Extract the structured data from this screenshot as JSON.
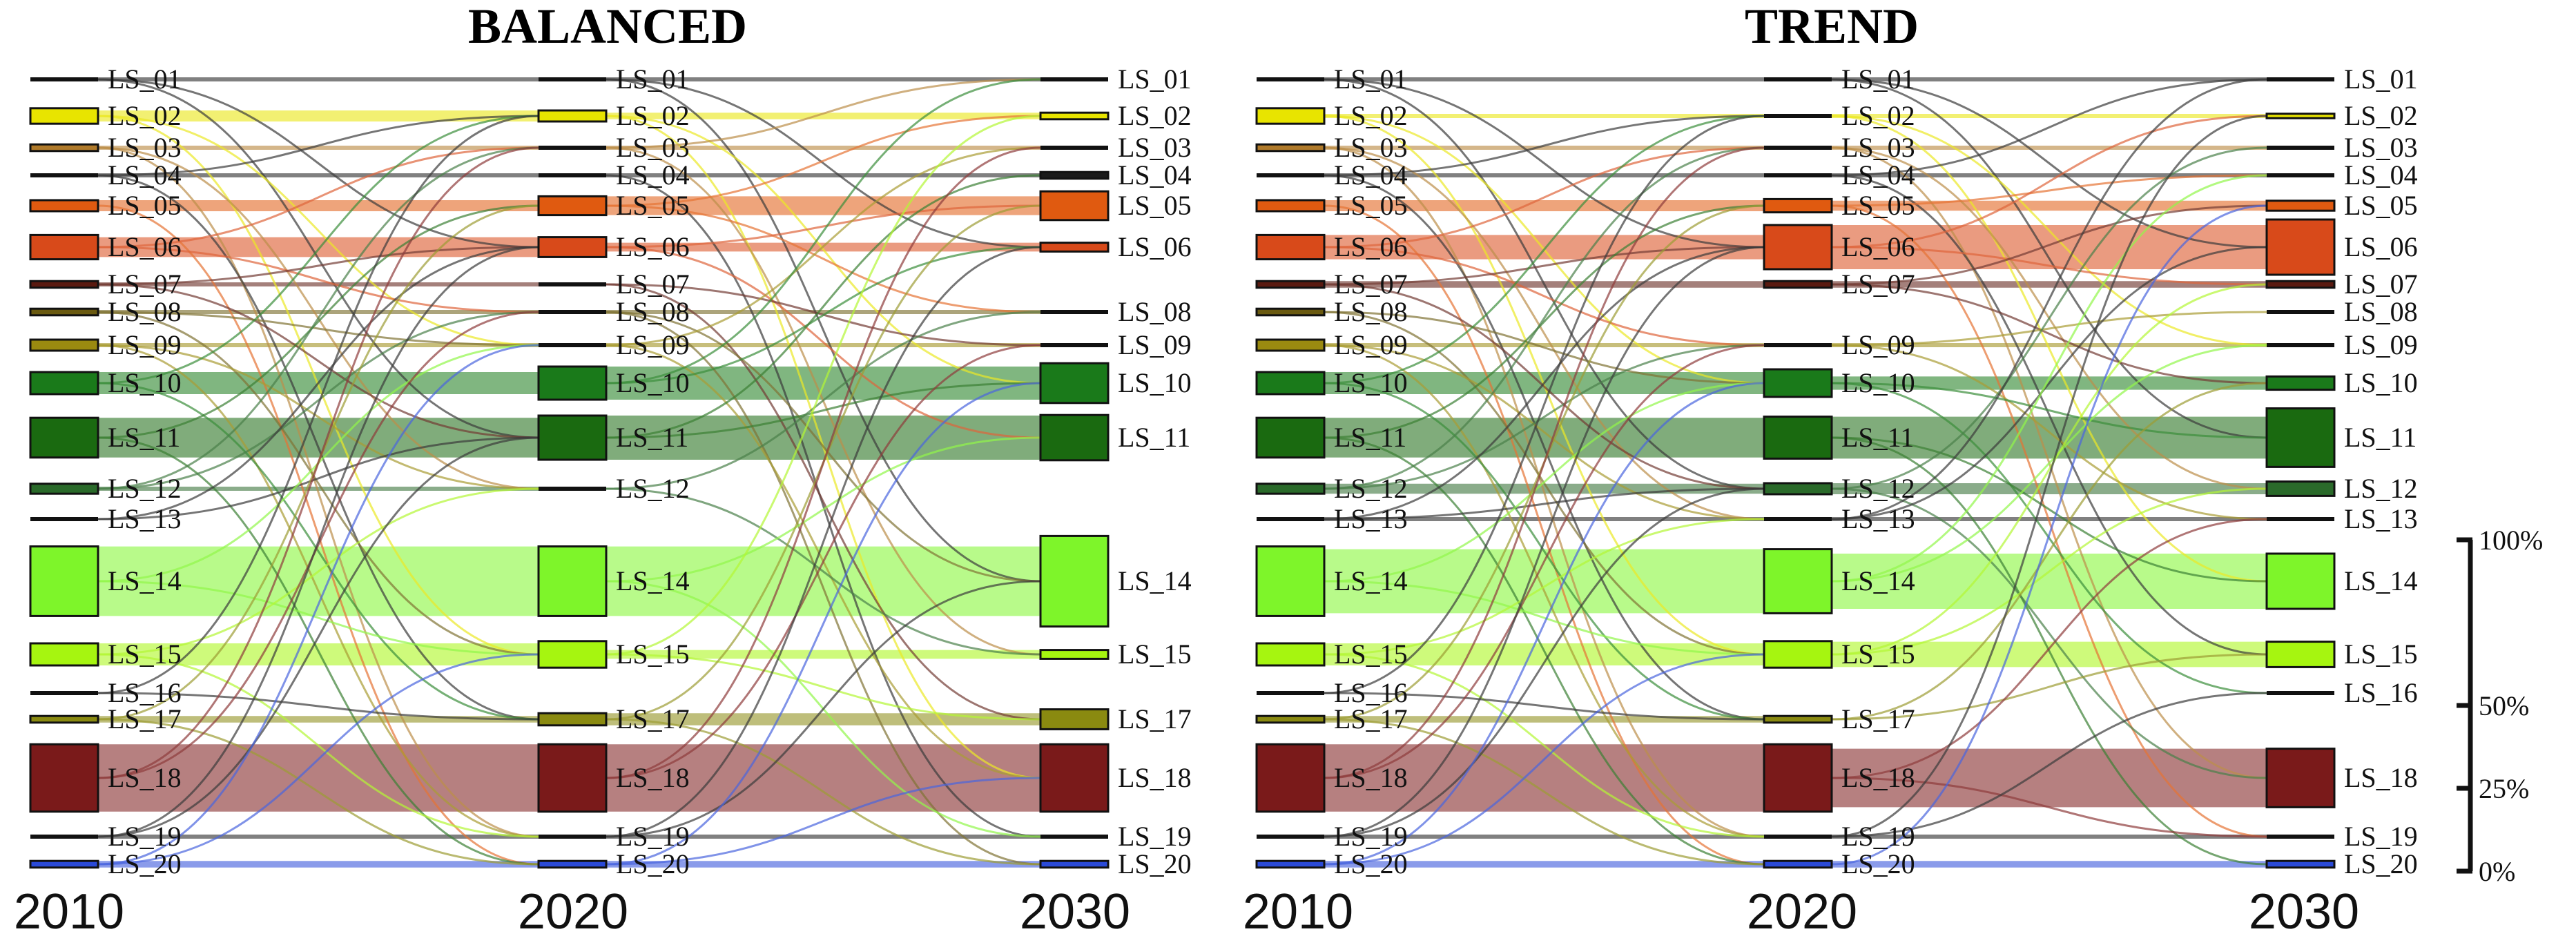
{
  "chart_data": [
    {
      "type": "sankey",
      "title": "BALANCED",
      "stages": [
        "2010",
        "2020",
        "2030"
      ],
      "series_colors": {
        "LS_01": "#1a1a1a",
        "LS_02": "#e8e400",
        "LS_03": "#b07a2a",
        "LS_04": "#1a1a1a",
        "LS_05": "#e05a10",
        "LS_06": "#d84a1a",
        "LS_07": "#5a1a10",
        "LS_08": "#6a5a10",
        "LS_09": "#9a8a10",
        "LS_10": "#1a7a1a",
        "LS_11": "#1a6a10",
        "LS_12": "#2a6a2a",
        "LS_13": "#1a1a1a",
        "LS_14": "#7ef52a",
        "LS_15": "#a6f510",
        "LS_16": "#1a1a1a",
        "LS_17": "#8a8a10",
        "LS_18": "#7a1a1a",
        "LS_19": "#1a1a1a",
        "LS_20": "#2a4ad8"
      },
      "nodes": {
        "2010": [
          {
            "label": "LS_01",
            "value": 0.3
          },
          {
            "label": "LS_02",
            "value": 1.4
          },
          {
            "label": "LS_03",
            "value": 0.6
          },
          {
            "label": "LS_04",
            "value": 0.3
          },
          {
            "label": "LS_05",
            "value": 1.0
          },
          {
            "label": "LS_06",
            "value": 2.2
          },
          {
            "label": "LS_07",
            "value": 0.6
          },
          {
            "label": "LS_08",
            "value": 0.6
          },
          {
            "label": "LS_09",
            "value": 1.0
          },
          {
            "label": "LS_10",
            "value": 2.0
          },
          {
            "label": "LS_11",
            "value": 3.6
          },
          {
            "label": "LS_12",
            "value": 0.9
          },
          {
            "label": "LS_13",
            "value": 0.3
          },
          {
            "label": "LS_14",
            "value": 6.3
          },
          {
            "label": "LS_15",
            "value": 2.0
          },
          {
            "label": "LS_16",
            "value": 0.3
          },
          {
            "label": "LS_17",
            "value": 0.6
          },
          {
            "label": "LS_18",
            "value": 6.1
          },
          {
            "label": "LS_19",
            "value": 0.3
          },
          {
            "label": "LS_20",
            "value": 0.6
          }
        ],
        "2020": [
          {
            "label": "LS_01",
            "value": 0.3
          },
          {
            "label": "LS_02",
            "value": 1.0
          },
          {
            "label": "LS_03",
            "value": 0.3
          },
          {
            "label": "LS_04",
            "value": 0.3
          },
          {
            "label": "LS_05",
            "value": 1.7
          },
          {
            "label": "LS_06",
            "value": 1.8
          },
          {
            "label": "LS_07",
            "value": 0.3
          },
          {
            "label": "LS_08",
            "value": 0.3
          },
          {
            "label": "LS_09",
            "value": 0.3
          },
          {
            "label": "LS_10",
            "value": 3.0
          },
          {
            "label": "LS_11",
            "value": 4.0
          },
          {
            "label": "LS_12",
            "value": 0.3
          },
          {
            "label": "LS_14",
            "value": 6.3
          },
          {
            "label": "LS_15",
            "value": 2.4
          },
          {
            "label": "LS_17",
            "value": 1.1
          },
          {
            "label": "LS_18",
            "value": 6.1
          },
          {
            "label": "LS_19",
            "value": 0.3
          },
          {
            "label": "LS_20",
            "value": 0.6
          }
        ],
        "2030": [
          {
            "label": "LS_01",
            "value": 0.3
          },
          {
            "label": "LS_02",
            "value": 0.6
          },
          {
            "label": "LS_03",
            "value": 0.3
          },
          {
            "label": "LS_04",
            "value": 0.6
          },
          {
            "label": "LS_05",
            "value": 2.6
          },
          {
            "label": "LS_06",
            "value": 0.8
          },
          {
            "label": "LS_08",
            "value": 0.3
          },
          {
            "label": "LS_09",
            "value": 0.3
          },
          {
            "label": "LS_10",
            "value": 3.6
          },
          {
            "label": "LS_11",
            "value": 4.1
          },
          {
            "label": "LS_14",
            "value": 8.2
          },
          {
            "label": "LS_15",
            "value": 0.8
          },
          {
            "label": "LS_17",
            "value": 1.8
          },
          {
            "label": "LS_18",
            "value": 6.1
          },
          {
            "label": "LS_19",
            "value": 0.3
          },
          {
            "label": "LS_20",
            "value": 0.6
          }
        ]
      }
    },
    {
      "type": "sankey",
      "title": "TREND",
      "stages": [
        "2010",
        "2020",
        "2030"
      ],
      "series_colors": {
        "LS_01": "#1a1a1a",
        "LS_02": "#e8e400",
        "LS_03": "#b07a2a",
        "LS_04": "#1a1a1a",
        "LS_05": "#e05a10",
        "LS_06": "#d84a1a",
        "LS_07": "#5a1a10",
        "LS_08": "#6a5a10",
        "LS_09": "#9a8a10",
        "LS_10": "#1a7a1a",
        "LS_11": "#1a6a10",
        "LS_12": "#2a6a2a",
        "LS_13": "#1a1a1a",
        "LS_14": "#7ef52a",
        "LS_15": "#a6f510",
        "LS_16": "#1a1a1a",
        "LS_17": "#8a8a10",
        "LS_18": "#7a1a1a",
        "LS_19": "#1a1a1a",
        "LS_20": "#2a4ad8"
      },
      "nodes": {
        "2010": [
          {
            "label": "LS_01",
            "value": 0.3
          },
          {
            "label": "LS_02",
            "value": 1.4
          },
          {
            "label": "LS_03",
            "value": 0.6
          },
          {
            "label": "LS_04",
            "value": 0.3
          },
          {
            "label": "LS_05",
            "value": 1.0
          },
          {
            "label": "LS_06",
            "value": 2.2
          },
          {
            "label": "LS_07",
            "value": 0.6
          },
          {
            "label": "LS_08",
            "value": 0.6
          },
          {
            "label": "LS_09",
            "value": 1.0
          },
          {
            "label": "LS_10",
            "value": 2.0
          },
          {
            "label": "LS_11",
            "value": 3.6
          },
          {
            "label": "LS_12",
            "value": 0.9
          },
          {
            "label": "LS_13",
            "value": 0.3
          },
          {
            "label": "LS_14",
            "value": 6.3
          },
          {
            "label": "LS_15",
            "value": 2.0
          },
          {
            "label": "LS_16",
            "value": 0.3
          },
          {
            "label": "LS_17",
            "value": 0.6
          },
          {
            "label": "LS_18",
            "value": 6.1
          },
          {
            "label": "LS_19",
            "value": 0.3
          },
          {
            "label": "LS_20",
            "value": 0.6
          }
        ],
        "2020": [
          {
            "label": "LS_01",
            "value": 0.3
          },
          {
            "label": "LS_02",
            "value": 0.3
          },
          {
            "label": "LS_03",
            "value": 0.3
          },
          {
            "label": "LS_04",
            "value": 0.3
          },
          {
            "label": "LS_05",
            "value": 1.2
          },
          {
            "label": "LS_06",
            "value": 4.0
          },
          {
            "label": "LS_07",
            "value": 0.6
          },
          {
            "label": "LS_09",
            "value": 0.3
          },
          {
            "label": "LS_10",
            "value": 2.5
          },
          {
            "label": "LS_11",
            "value": 3.8
          },
          {
            "label": "LS_12",
            "value": 1.0
          },
          {
            "label": "LS_13",
            "value": 0.3
          },
          {
            "label": "LS_14",
            "value": 5.8
          },
          {
            "label": "LS_15",
            "value": 2.4
          },
          {
            "label": "LS_17",
            "value": 0.6
          },
          {
            "label": "LS_18",
            "value": 6.1
          },
          {
            "label": "LS_19",
            "value": 0.3
          },
          {
            "label": "LS_20",
            "value": 0.6
          }
        ],
        "2030": [
          {
            "label": "LS_01",
            "value": 0.3
          },
          {
            "label": "LS_02",
            "value": 0.4
          },
          {
            "label": "LS_03",
            "value": 0.3
          },
          {
            "label": "LS_04",
            "value": 0.3
          },
          {
            "label": "LS_05",
            "value": 0.9
          },
          {
            "label": "LS_06",
            "value": 5.0
          },
          {
            "label": "LS_07",
            "value": 0.6
          },
          {
            "label": "LS_08",
            "value": 0.3
          },
          {
            "label": "LS_09",
            "value": 0.3
          },
          {
            "label": "LS_10",
            "value": 1.2
          },
          {
            "label": "LS_11",
            "value": 5.3
          },
          {
            "label": "LS_12",
            "value": 1.3
          },
          {
            "label": "LS_13",
            "value": 0.3
          },
          {
            "label": "LS_14",
            "value": 5.0
          },
          {
            "label": "LS_15",
            "value": 2.3
          },
          {
            "label": "LS_16",
            "value": 0.3
          },
          {
            "label": "LS_18",
            "value": 5.3
          },
          {
            "label": "LS_19",
            "value": 0.3
          },
          {
            "label": "LS_20",
            "value": 0.6
          }
        ]
      }
    }
  ],
  "scale": {
    "labels": [
      "100%",
      "50%",
      "25%",
      "0%"
    ],
    "values": [
      100,
      50,
      25,
      0
    ]
  }
}
